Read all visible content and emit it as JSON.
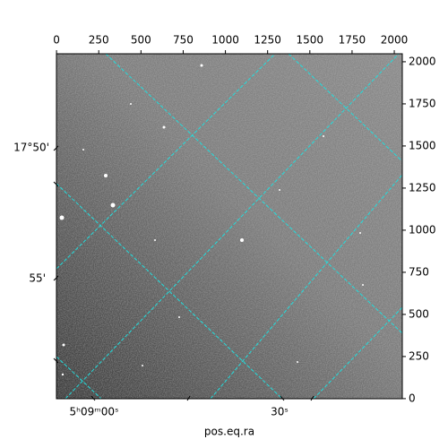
{
  "chart_data": {
    "type": "image",
    "xlabel": "pos.eq.ra",
    "xlim": [
      -0.5,
      2047.5
    ],
    "ylim": [
      -0.5,
      2047.5
    ],
    "xticks": [
      0,
      250,
      500,
      750,
      1000,
      1250,
      1500,
      1750,
      2000
    ],
    "yticks": [
      0,
      250,
      500,
      750,
      1000,
      1250,
      1500,
      1750,
      2000
    ],
    "wcs_y_labels": [
      "17°50'",
      "55'"
    ],
    "wcs_x_labels": [
      "5ʰ09ᵐ00ˢ",
      "30ˢ"
    ],
    "grid": true,
    "grid_color": "#22dddd"
  }
}
